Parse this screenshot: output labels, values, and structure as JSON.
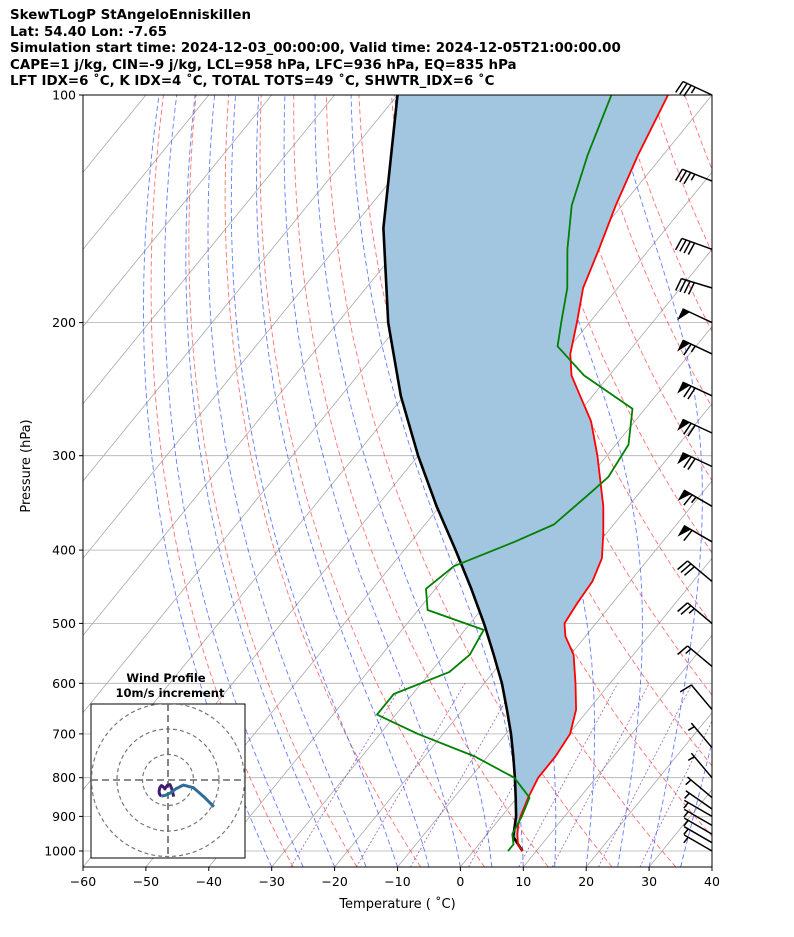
{
  "header": {
    "lines": [
      "SkewTLogP StAngeloEnniskillen",
      "Lat: 54.40   Lon: -7.65",
      "Simulation start time: 2024-12-03_00:00:00, Valid time: 2024-12-05T21:00:00.00",
      "CAPE=1 j/kg, CIN=-9 j/kg, LCL=958 hPa, LFC=936 hPa, EQ=835 hPa",
      "LFT IDX=6 ˚C, K IDX=4 ˚C, TOTAL TOTS=49 ˚C, SHWTR_IDX=6 ˚C"
    ]
  },
  "chart_data": {
    "type": "skewt",
    "xlabel": "Temperature ($^\\circ$C)",
    "ylabel": "Pressure (hPa)",
    "xlim": [
      -60,
      40
    ],
    "ylim": [
      1050,
      100
    ],
    "x_ticks": [
      "−60",
      "−50",
      "−40",
      "−30",
      "−20",
      "−10",
      "0",
      "10",
      "20",
      "30",
      "40"
    ],
    "y_ticks": [
      "100",
      "200",
      "300",
      "400",
      "500",
      "600",
      "700",
      "800",
      "900",
      "1000"
    ],
    "temperature": {
      "color": "#ff0000",
      "p": [
        1000,
        980,
        950,
        925,
        900,
        850,
        800,
        750,
        700,
        650,
        600,
        550,
        520,
        500,
        470,
        440,
        410,
        380,
        350,
        300,
        270,
        250,
        235,
        220,
        200,
        180,
        160,
        140,
        120,
        100
      ],
      "t": [
        7.8,
        6.2,
        4.8,
        3.8,
        3.0,
        1.8,
        0.8,
        0.8,
        0.2,
        -2.0,
        -5.5,
        -9.5,
        -13.2,
        -15.0,
        -15.6,
        -16.0,
        -17.5,
        -20.5,
        -24.0,
        -31.5,
        -37.0,
        -42.0,
        -46.0,
        -49.0,
        -52.0,
        -55.5,
        -58.0,
        -61.0,
        -64.0,
        -67.0
      ]
    },
    "dewpoint": {
      "color": "#008000",
      "p": [
        1000,
        980,
        950,
        900,
        850,
        800,
        750,
        700,
        660,
        620,
        580,
        550,
        510,
        480,
        450,
        420,
        390,
        370,
        340,
        320,
        290,
        260,
        235,
        215,
        200,
        180,
        160,
        140,
        120,
        100
      ],
      "t": [
        5.5,
        5.5,
        4.0,
        3.2,
        2.0,
        -3.0,
        -12.0,
        -24.0,
        -33.0,
        -33.0,
        -27.0,
        -26.0,
        -27.0,
        -38.5,
        -41.5,
        -40.0,
        -33.5,
        -29.5,
        -28.0,
        -27.0,
        -28.0,
        -32.0,
        -44.0,
        -52.0,
        -54.5,
        -58.0,
        -63.0,
        -68.0,
        -72.0,
        -76.0
      ]
    },
    "parcel": {
      "color": "#000000",
      "p": [
        1000,
        958,
        900,
        850,
        800,
        750,
        700,
        650,
        600,
        550,
        500,
        450,
        400,
        350,
        300,
        250,
        200,
        150,
        100
      ],
      "t": [
        7.8,
        4.5,
        2.3,
        -0.2,
        -2.9,
        -5.9,
        -9.2,
        -13.0,
        -17.2,
        -22.2,
        -27.8,
        -34.3,
        -41.8,
        -50.5,
        -60.0,
        -70.5,
        -82.0,
        -95.0,
        -110.0
      ]
    },
    "cape_fill_color": "#a3c6e0",
    "winds": {
      "p": [
        100,
        130,
        160,
        180,
        200,
        220,
        250,
        280,
        310,
        350,
        390,
        440,
        500,
        570,
        650,
        730,
        800,
        850,
        880,
        900,
        925,
        950,
        975,
        1000
      ],
      "speed_kt": [
        35,
        35,
        40,
        40,
        50,
        65,
        70,
        70,
        70,
        65,
        60,
        30,
        25,
        15,
        10,
        5,
        5,
        5,
        5,
        5,
        5,
        5,
        5,
        5
      ],
      "direction_deg": [
        295,
        292,
        290,
        287,
        295,
        295,
        295,
        295,
        295,
        300,
        300,
        310,
        310,
        310,
        320,
        320,
        320,
        310,
        305,
        300,
        300,
        300,
        300,
        300
      ]
    },
    "hodograph": {
      "title": "Wind Profile",
      "subtitle": "10m/s increment",
      "rings_ms": [
        10,
        20,
        30
      ],
      "segments": [
        {
          "color": "#3f1d71",
          "u": [
            2.2,
            2.0,
            1.5,
            0.8,
            -0.2,
            -0.9,
            -1.2,
            -1.6,
            -2.0,
            -2.6,
            -3.2,
            -3.5,
            -3.4,
            -3.1,
            -2.6
          ],
          "v": [
            -6.5,
            -5.5,
            -3.5,
            -1.8,
            -2.0,
            -3.0,
            -3.5,
            -3.0,
            -2.5,
            -2.2,
            -3.0,
            -4.3,
            -5.2,
            -5.9,
            -6.3
          ]
        },
        {
          "color": "#2f6d99",
          "u": [
            -2.6,
            -1.0,
            1.0,
            3.0,
            6.0,
            10.0,
            14.0,
            18.0
          ],
          "v": [
            -6.3,
            -6.0,
            -5.0,
            -3.5,
            -2.0,
            -3.0,
            -6.5,
            -10.5
          ]
        }
      ]
    }
  }
}
